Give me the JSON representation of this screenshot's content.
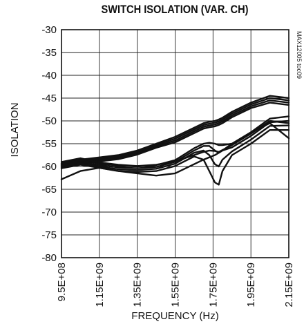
{
  "chart_data": {
    "type": "line",
    "title": "SWITCH ISOLATION (VAR. CH)",
    "xlabel": "FREQUENCY (Hz)",
    "ylabel": "ISOLATION",
    "watermark": "MAX12005 toc09",
    "xlim": [
      950000000,
      2150000000
    ],
    "ylim": [
      -80,
      -30
    ],
    "x_ticks": [
      {
        "value": 950000000,
        "label": "9.5E+08"
      },
      {
        "value": 1150000000,
        "label": "1.15E+09"
      },
      {
        "value": 1350000000,
        "label": "1.35E+09"
      },
      {
        "value": 1550000000,
        "label": "1.55E+09"
      },
      {
        "value": 1750000000,
        "label": "1.75E+09"
      },
      {
        "value": 1950000000,
        "label": "1.95E+09"
      },
      {
        "value": 2150000000,
        "label": "2.15E+09"
      }
    ],
    "y_ticks": [
      {
        "value": -30,
        "label": "-30"
      },
      {
        "value": -35,
        "label": "-35"
      },
      {
        "value": -40,
        "label": "-40"
      },
      {
        "value": -45,
        "label": "-45"
      },
      {
        "value": -50,
        "label": "-50"
      },
      {
        "value": -55,
        "label": "-55"
      },
      {
        "value": -60,
        "label": "-60"
      },
      {
        "value": -65,
        "label": "-65"
      },
      {
        "value": -70,
        "label": "-70"
      },
      {
        "value": -75,
        "label": "-75"
      },
      {
        "value": -80,
        "label": "-80"
      }
    ],
    "grid": true,
    "line_color": "#111111",
    "x": [
      950000000,
      1050000000,
      1150000000,
      1250000000,
      1350000000,
      1450000000,
      1550000000,
      1650000000,
      1700000000,
      1730000000,
      1760000000,
      1780000000,
      1800000000,
      1850000000,
      1950000000,
      2050000000,
      2150000000
    ],
    "series": [
      {
        "values": [
          -59.3,
          -58.5,
          -58.0,
          -57.5,
          -56.5,
          -55.0,
          -53.5,
          -51.5,
          -50.5,
          -50.2,
          -50.0,
          -49.7,
          -49.3,
          -48.0,
          -46.0,
          -44.5,
          -45.0
        ]
      },
      {
        "values": [
          -59.6,
          -58.8,
          -58.3,
          -57.8,
          -56.8,
          -55.3,
          -53.9,
          -51.9,
          -50.9,
          -50.6,
          -50.4,
          -50.1,
          -49.7,
          -48.4,
          -46.4,
          -45.0,
          -45.5
        ]
      },
      {
        "values": [
          -59.9,
          -59.1,
          -58.6,
          -58.1,
          -57.1,
          -55.6,
          -54.3,
          -52.3,
          -51.3,
          -51.0,
          -50.8,
          -50.5,
          -50.1,
          -48.8,
          -46.8,
          -45.5,
          -46.0
        ]
      },
      {
        "values": [
          -60.2,
          -59.4,
          -58.9,
          -58.4,
          -57.4,
          -55.9,
          -54.7,
          -52.7,
          -51.7,
          -51.4,
          -51.2,
          -50.9,
          -50.5,
          -49.2,
          -47.2,
          -46.0,
          -46.5
        ]
      },
      {
        "values": [
          -59.5,
          -58.6,
          -59.4,
          -59.8,
          -60.0,
          -59.7,
          -58.6,
          -56.0,
          -55.0,
          -54.8,
          -55.0,
          -55.3,
          -55.3,
          -55.0,
          -52.5,
          -49.5,
          -49.0
        ]
      },
      {
        "values": [
          -59.8,
          -59.0,
          -59.7,
          -60.2,
          -60.4,
          -60.1,
          -59.0,
          -56.5,
          -55.5,
          -55.5,
          -56.5,
          -57.0,
          -56.5,
          -55.8,
          -53.3,
          -50.3,
          -50.0
        ]
      },
      {
        "values": [
          -60.1,
          -59.3,
          -60.0,
          -60.6,
          -60.8,
          -60.5,
          -59.4,
          -57.0,
          -56.5,
          -57.5,
          -59.5,
          -60.0,
          -58.5,
          -56.7,
          -54.1,
          -51.1,
          -51.0
        ]
      },
      {
        "values": [
          -60.4,
          -59.6,
          -60.3,
          -61.0,
          -61.2,
          -61.0,
          -59.9,
          -57.8,
          -58.5,
          -61.0,
          -63.5,
          -64.0,
          -61.0,
          -57.5,
          -55.0,
          -52.0,
          -52.0
        ]
      },
      {
        "values": [
          -62.8,
          -61.0,
          -60.3,
          -61.0,
          -61.5,
          -62.0,
          -61.5,
          -59.5,
          -58.5,
          -58.0,
          -57.5,
          -57.0,
          -56.5,
          -55.0,
          -52.5,
          -50.5,
          -53.8
        ]
      },
      {
        "values": [
          -59.0,
          -58.2,
          -59.1,
          -59.6,
          -59.9,
          -59.6,
          -58.9,
          -57.5,
          -56.8,
          -56.5,
          -56.6,
          -56.8,
          -56.4,
          -55.3,
          -52.8,
          -50.0,
          -50.5
        ]
      }
    ]
  }
}
